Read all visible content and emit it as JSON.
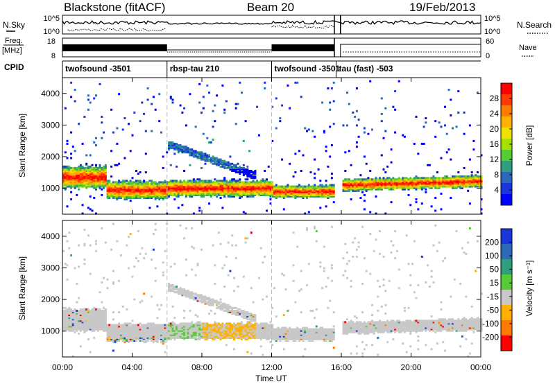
{
  "header": {
    "title": "Blackstone (fitACF)",
    "beam": "Beam 20",
    "date": "19/Feb/2013"
  },
  "panels": {
    "nsky_label": "N.Sky",
    "nsearch_label": "N.Search",
    "nsky_ticks": [
      "10^5",
      "10^0"
    ],
    "nsearch_ticks": [
      "10^5",
      "10^0"
    ],
    "freq_label_1": "Freq.",
    "freq_label_2": "[MHz]",
    "freq_ticks": [
      "18",
      "8"
    ],
    "nave_label": "Nave",
    "nave_ticks": [
      "60",
      "0"
    ],
    "cpid_label": "CPID"
  },
  "cpid_segments": [
    {
      "label": "twofsound -3501",
      "start_hour": 0,
      "end_hour": 6
    },
    {
      "label": "rbsp-tau 210",
      "start_hour": 6,
      "end_hour": 12
    },
    {
      "label": "twofsound -3501",
      "start_hour": 12,
      "end_hour": 15.7
    },
    {
      "label": "tau (fast) -503",
      "start_hour": 15.7,
      "end_hour": 24
    }
  ],
  "chart_data": [
    {
      "type": "heatmap",
      "name": "power",
      "ylabel": "Slant Range [km]",
      "yticks": [
        1000,
        2000,
        3000,
        4000
      ],
      "ylim": [
        180,
        4500
      ],
      "xlim": [
        0,
        24
      ],
      "colorbar_label": "Power [dB]",
      "colorbar_ticks": [
        "28",
        "24",
        "20",
        "16",
        "12",
        "8",
        "4"
      ],
      "colorbar_colors": [
        "#ff0000",
        "#ff3a00",
        "#ff7a00",
        "#ffb000",
        "#f0e000",
        "#a8e000",
        "#55cc33",
        "#2e9e7e",
        "#2a6ab8",
        "#1a36d8",
        "#0000ff"
      ],
      "colorbar_range": [
        0,
        30
      ]
    },
    {
      "type": "heatmap",
      "name": "velocity",
      "ylabel": "Slant Range [km]",
      "yticks": [
        1000,
        2000,
        3000,
        4000
      ],
      "ylim": [
        180,
        4500
      ],
      "xlim": [
        0,
        24
      ],
      "colorbar_label": "Velocity [m s⁻¹]",
      "colorbar_ticks": [
        "200",
        "100",
        "50",
        "15",
        "-15",
        "-50",
        "-100",
        "-200"
      ],
      "colorbar_colors": [
        "#1a36d8",
        "#2a6ab8",
        "#2e9e7e",
        "#55cc33",
        "#c8c8c8",
        "#ffb000",
        "#ff7a00",
        "#ff0000"
      ]
    }
  ],
  "xaxis": {
    "label": "Time UT",
    "ticks": [
      "00:00",
      "04:00",
      "08:00",
      "12:00",
      "16:00",
      "20:00",
      "00:00"
    ]
  }
}
